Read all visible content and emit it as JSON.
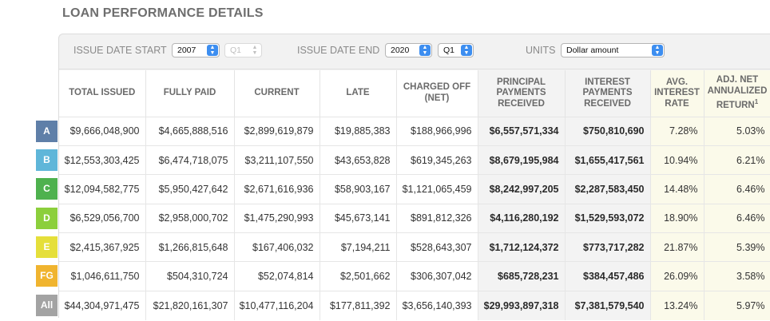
{
  "page_title": "LOAN PERFORMANCE DETAILS",
  "filters": {
    "issue_date_start_label": "ISSUE DATE START",
    "start_year": "2007",
    "start_quarter": "Q1",
    "issue_date_end_label": "ISSUE DATE END",
    "end_year": "2020",
    "end_quarter": "Q1",
    "units_label": "UNITS",
    "units_value": "Dollar amount"
  },
  "table": {
    "headers": {
      "total_issued": "TOTAL ISSUED",
      "fully_paid": "FULLY PAID",
      "current": "CURRENT",
      "late": "LATE",
      "charged_off": "CHARGED OFF (NET)",
      "principal": "PRINCIPAL PAYMENTS RECEIVED",
      "interest": "INTEREST PAYMENTS RECEIVED",
      "avg_rate": "AVG. INTEREST RATE",
      "adj_return": "ADJ. NET ANNUALIZED RETURN",
      "adj_return_sup": "1"
    },
    "rows": [
      {
        "grade": "A",
        "color": "#5f7fa8",
        "cells": [
          "$9,666,048,900",
          "$4,665,888,516",
          "$2,899,619,879",
          "$19,885,383",
          "$188,966,996",
          "$6,557,571,334",
          "$750,810,690",
          "7.28%",
          "5.03%"
        ]
      },
      {
        "grade": "B",
        "color": "#5fb6d9",
        "cells": [
          "$12,553,303,425",
          "$6,474,718,075",
          "$3,211,107,550",
          "$43,653,828",
          "$619,345,263",
          "$8,679,195,984",
          "$1,655,417,561",
          "10.94%",
          "6.21%"
        ]
      },
      {
        "grade": "C",
        "color": "#4eb14e",
        "cells": [
          "$12,094,582,775",
          "$5,950,427,642",
          "$2,671,616,936",
          "$58,903,167",
          "$1,121,065,459",
          "$8,242,997,205",
          "$2,287,583,450",
          "14.48%",
          "6.46%"
        ]
      },
      {
        "grade": "D",
        "color": "#8ccf3c",
        "cells": [
          "$6,529,056,700",
          "$2,958,000,702",
          "$1,475,290,993",
          "$45,673,141",
          "$891,812,326",
          "$4,116,280,192",
          "$1,529,593,072",
          "18.90%",
          "6.46%"
        ]
      },
      {
        "grade": "E",
        "color": "#e5df3a",
        "cells": [
          "$2,415,367,925",
          "$1,266,815,648",
          "$167,406,032",
          "$7,194,211",
          "$528,643,307",
          "$1,712,124,372",
          "$773,717,282",
          "21.87%",
          "5.39%"
        ]
      },
      {
        "grade": "FG",
        "color": "#f0b42f",
        "cells": [
          "$1,046,611,750",
          "$504,310,724",
          "$52,074,814",
          "$2,501,662",
          "$306,307,042",
          "$685,728,231",
          "$384,457,486",
          "26.09%",
          "3.58%"
        ]
      },
      {
        "grade": "All",
        "color": "#a3a3a3",
        "cells": [
          "$44,304,971,475",
          "$21,820,161,307",
          "$10,477,116,204",
          "$177,811,392",
          "$3,656,140,393",
          "$29,993,897,318",
          "$7,381,579,540",
          "13.24%",
          "5.97%"
        ]
      }
    ]
  }
}
